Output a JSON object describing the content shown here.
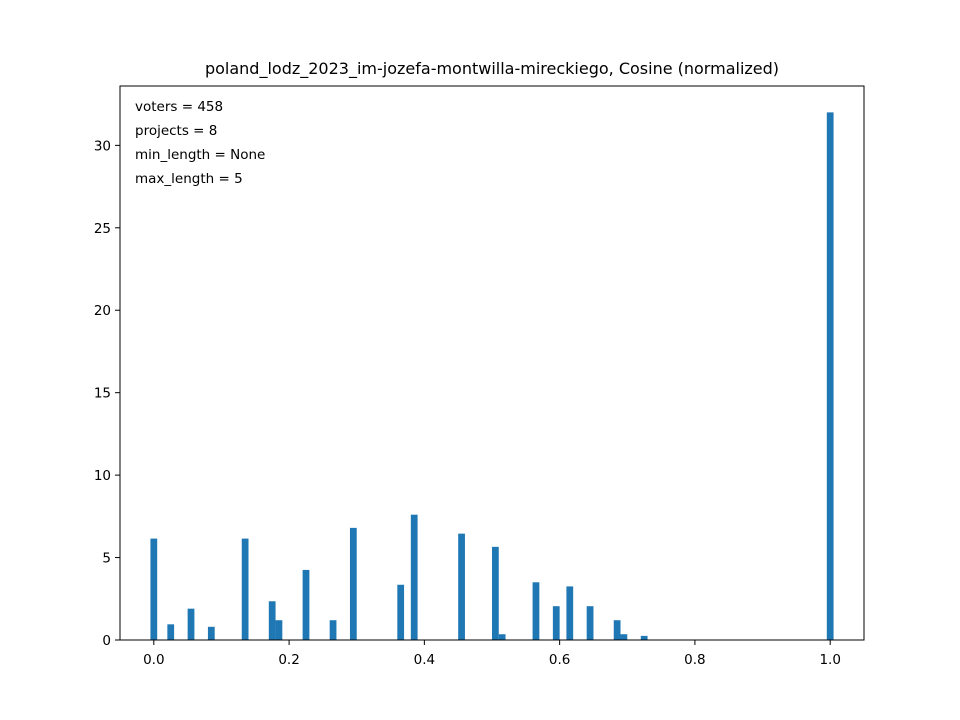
{
  "chart_data": {
    "type": "bar",
    "title": "poland_lodz_2023_im-jozefa-montwilla-mireckiego, Cosine (normalized)",
    "xlabel": "",
    "ylabel": "",
    "xlim": [
      -0.05,
      1.05
    ],
    "ylim": [
      0,
      33.6
    ],
    "xticks": [
      0.0,
      0.2,
      0.4,
      0.6,
      0.8,
      1.0
    ],
    "xtick_labels": [
      "0.0",
      "0.2",
      "0.4",
      "0.6",
      "0.8",
      "1.0"
    ],
    "yticks": [
      0,
      5,
      10,
      15,
      20,
      25,
      30
    ],
    "ytick_labels": [
      "0",
      "5",
      "10",
      "15",
      "20",
      "25",
      "30"
    ],
    "bin_width": 0.01,
    "bar_color": "#1f77b4",
    "bars": [
      {
        "x": 0.0,
        "value": 6.15
      },
      {
        "x": 0.025,
        "value": 0.95
      },
      {
        "x": 0.055,
        "value": 1.9
      },
      {
        "x": 0.085,
        "value": 0.8
      },
      {
        "x": 0.135,
        "value": 6.15
      },
      {
        "x": 0.175,
        "value": 2.35
      },
      {
        "x": 0.185,
        "value": 1.2
      },
      {
        "x": 0.225,
        "value": 4.25
      },
      {
        "x": 0.265,
        "value": 1.2
      },
      {
        "x": 0.295,
        "value": 6.8
      },
      {
        "x": 0.365,
        "value": 3.35
      },
      {
        "x": 0.385,
        "value": 7.6
      },
      {
        "x": 0.455,
        "value": 6.45
      },
      {
        "x": 0.505,
        "value": 5.65
      },
      {
        "x": 0.515,
        "value": 0.35
      },
      {
        "x": 0.565,
        "value": 3.5
      },
      {
        "x": 0.595,
        "value": 2.05
      },
      {
        "x": 0.615,
        "value": 3.25
      },
      {
        "x": 0.645,
        "value": 2.05
      },
      {
        "x": 0.685,
        "value": 1.2
      },
      {
        "x": 0.695,
        "value": 0.35
      },
      {
        "x": 0.725,
        "value": 0.25
      },
      {
        "x": 1.0,
        "value": 32.0
      }
    ],
    "annotations": [
      "voters = 458",
      "projects = 8",
      "min_length = None",
      "max_length = 5"
    ],
    "grid": false,
    "legend": "none"
  }
}
